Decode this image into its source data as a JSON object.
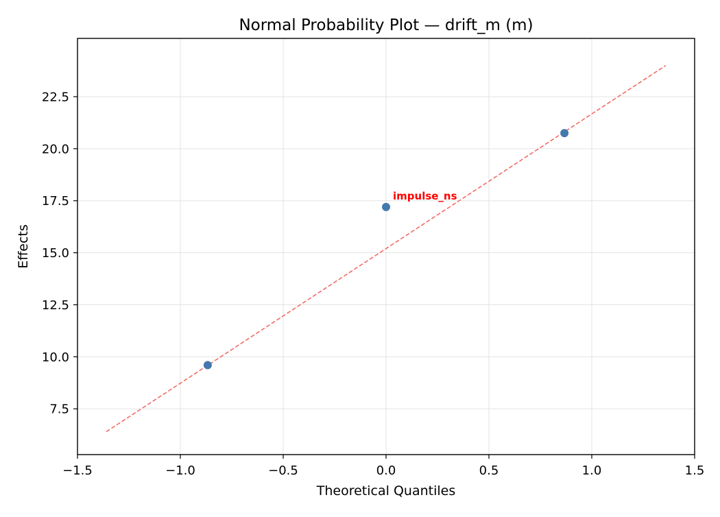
{
  "chart_data": {
    "type": "scatter",
    "title": "Normal Probability Plot — drift_m (m)",
    "xlabel": "Theoretical Quantiles",
    "ylabel": "Effects",
    "xlim": [
      -1.5,
      1.5
    ],
    "ylim": [
      5.3,
      25.3
    ],
    "grid": true,
    "x_ticks": [
      -1.5,
      -1.0,
      -0.5,
      0.0,
      0.5,
      1.0,
      1.5
    ],
    "x_tick_labels": [
      "−1.5",
      "−1.0",
      "−0.5",
      "0.0",
      "0.5",
      "1.0",
      "1.5"
    ],
    "y_ticks": [
      7.5,
      10.0,
      12.5,
      15.0,
      17.5,
      20.0,
      22.5
    ],
    "y_tick_labels": [
      "7.5",
      "10.0",
      "12.5",
      "15.0",
      "17.5",
      "20.0",
      "22.5"
    ],
    "points": [
      {
        "x": -0.867,
        "y": 9.6
      },
      {
        "x": 0.0,
        "y": 17.2
      },
      {
        "x": 0.867,
        "y": 20.75
      }
    ],
    "reference_line": {
      "x": [
        -1.36,
        1.36
      ],
      "y": [
        6.4,
        24.0
      ],
      "style": "dashed"
    },
    "annotations": [
      {
        "text": "impulse_ns",
        "x": 0.0,
        "y": 17.2
      }
    ],
    "colors": {
      "points": "#4479ae",
      "reference_line": "#f26b64",
      "annotation": "#ff0000",
      "grid": "#e3e3e3",
      "axes": "#000000"
    }
  }
}
